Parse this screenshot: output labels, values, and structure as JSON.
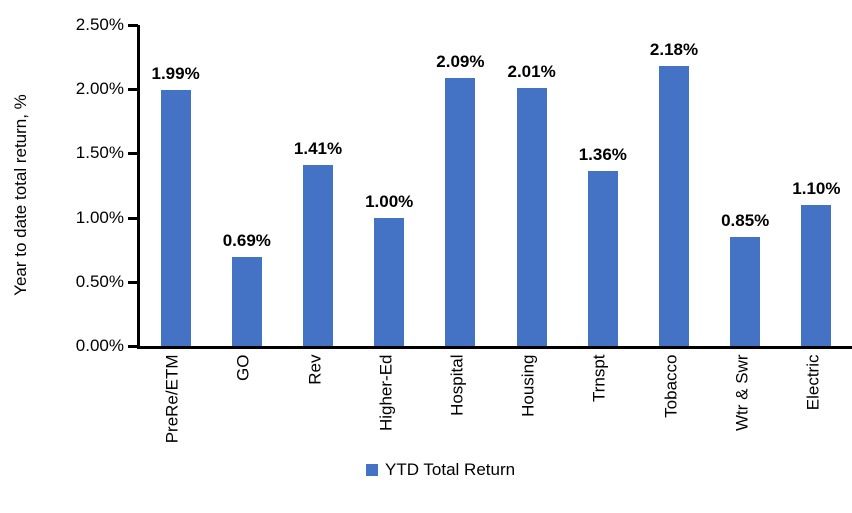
{
  "chart_data": {
    "type": "bar",
    "title": "",
    "ylabel": "Year to date total return, %",
    "xlabel": "",
    "categories": [
      "PreRe/ETM",
      "GO",
      "Rev",
      "Higher-Ed",
      "Hospital",
      "Housing",
      "Trnspt",
      "Tobacco",
      "Wtr & Swr",
      "Electric"
    ],
    "values": [
      1.99,
      0.69,
      1.41,
      1.0,
      2.09,
      2.01,
      1.36,
      2.18,
      0.85,
      1.1
    ],
    "data_labels": [
      "1.99%",
      "0.69%",
      "1.41%",
      "1.00%",
      "2.09%",
      "2.01%",
      "1.36%",
      "2.18%",
      "0.85%",
      "1.10%"
    ],
    "ylim": [
      0,
      2.5
    ],
    "ytick_labels": [
      "2.50%",
      "2.00%",
      "1.50%",
      "1.00%",
      "0.50%",
      "0.00%"
    ],
    "ytick_values": [
      2.5,
      2.0,
      1.5,
      1.0,
      0.5,
      0.0
    ],
    "grid": false,
    "legend_position": "bottom",
    "legend_entries": [
      {
        "label": "YTD Total Return",
        "color": "#4472C4"
      }
    ],
    "bar_color": "#4472C4",
    "axis_color": "#000000",
    "text_color": "#000000",
    "background_color": "#ffffff"
  }
}
